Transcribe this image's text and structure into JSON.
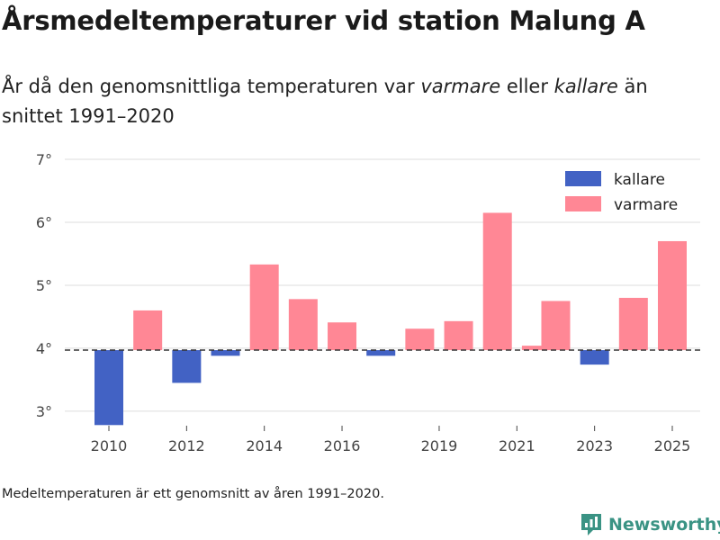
{
  "title": "Årsmedeltemperaturer vid station Malung A",
  "subtitle": {
    "before": "År då den genomsnittliga temperaturen var ",
    "warmer_word": "varmare",
    "middle": " eller ",
    "colder_word": "kallare",
    "after": " än snittet 1991–2020"
  },
  "footnote": "Medeltemperaturen är ett genomsnitt av åren 1991–2020.",
  "brand": {
    "name": "Newsworthy",
    "icon": "newsworthy-logo-icon"
  },
  "colors": {
    "colder": "#4262c4",
    "warmer": "#ff8795",
    "grid": "#dddddd",
    "baseline": "#333333",
    "brand": "#3a9384"
  },
  "chart_data": {
    "type": "bar",
    "title": "Årsmedeltemperaturer vid station Malung A",
    "xlabel": "",
    "ylabel": "",
    "ylim": [
      2.77,
      7
    ],
    "xlim": [
      2009.5,
      2025.5
    ],
    "yticks": [
      3,
      4,
      5,
      6,
      7
    ],
    "ytick_labels": [
      "3°",
      "4°",
      "5°",
      "6°",
      "7°"
    ],
    "xtick_labels": [
      "2010",
      "2012",
      "2014",
      "2016",
      "2019",
      "2021",
      "2023",
      "2025"
    ],
    "xtick_positions": [
      2010,
      2012,
      2014,
      2016,
      2018.5,
      2020.5,
      2022.5,
      2024.5
    ],
    "baseline": 3.97,
    "baseline_style": "dashed",
    "legend": {
      "position": "top-right",
      "entries": [
        "kallare",
        "varmare"
      ]
    },
    "series": [
      {
        "name": "kallare",
        "color": "#4262c4",
        "values": [
          {
            "x": 2010,
            "value": 2.78
          },
          {
            "x": 2012,
            "value": 3.45
          },
          {
            "x": 2013,
            "value": 3.88
          },
          {
            "x": 2017,
            "value": 3.88
          },
          {
            "x": 2022.5,
            "value": 3.74
          }
        ]
      },
      {
        "name": "varmare",
        "color": "#ff8795",
        "values": [
          {
            "x": 2011,
            "value": 4.6
          },
          {
            "x": 2014,
            "value": 5.33
          },
          {
            "x": 2015,
            "value": 4.78
          },
          {
            "x": 2016,
            "value": 4.41
          },
          {
            "x": 2018,
            "value": 4.31
          },
          {
            "x": 2019,
            "value": 4.43
          },
          {
            "x": 2020,
            "value": 6.15
          },
          {
            "x": 2021,
            "value": 4.04
          },
          {
            "x": 2021.5,
            "value": 4.75
          },
          {
            "x": 2023.5,
            "value": 4.8
          },
          {
            "x": 2024.5,
            "value": 5.7
          }
        ]
      }
    ]
  }
}
